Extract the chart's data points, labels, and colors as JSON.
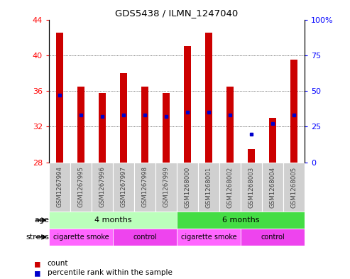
{
  "title": "GDS5438 / ILMN_1247040",
  "samples": [
    "GSM1267994",
    "GSM1267995",
    "GSM1267996",
    "GSM1267997",
    "GSM1267998",
    "GSM1267999",
    "GSM1268000",
    "GSM1268001",
    "GSM1268002",
    "GSM1268003",
    "GSM1268004",
    "GSM1268005"
  ],
  "count_values": [
    42.5,
    36.5,
    35.8,
    38.0,
    36.5,
    35.8,
    41.0,
    42.5,
    36.5,
    29.5,
    33.0,
    39.5
  ],
  "percentile_values": [
    47,
    33,
    32,
    33,
    33,
    32,
    35,
    35,
    33,
    20,
    27,
    33
  ],
  "y_min": 28,
  "y_max": 44,
  "y_ticks": [
    28,
    32,
    36,
    40,
    44
  ],
  "y2_ticks": [
    0,
    25,
    50,
    75,
    100
  ],
  "bar_color": "#CC0000",
  "dot_color": "#0000CC",
  "age_4months_color": "#BBFFBB",
  "age_6months_color": "#44DD44",
  "stress_cig_color": "#FF66FF",
  "stress_ctrl_color": "#EE44EE",
  "age_starts": [
    0,
    6
  ],
  "age_ends": [
    6,
    12
  ],
  "age_labels": [
    "4 months",
    "6 months"
  ],
  "stress_starts": [
    0,
    3,
    6,
    9
  ],
  "stress_ends": [
    3,
    6,
    9,
    12
  ],
  "stress_labels": [
    "cigarette smoke",
    "control",
    "cigarette smoke",
    "control"
  ],
  "stress_colors": [
    "#FF66FF",
    "#EE44EE",
    "#FF66FF",
    "#EE44EE"
  ],
  "tick_label_color": "#888888",
  "bar_bottom": 28,
  "bar_width": 0.35,
  "figsize": [
    4.93,
    3.93
  ],
  "dpi": 100
}
